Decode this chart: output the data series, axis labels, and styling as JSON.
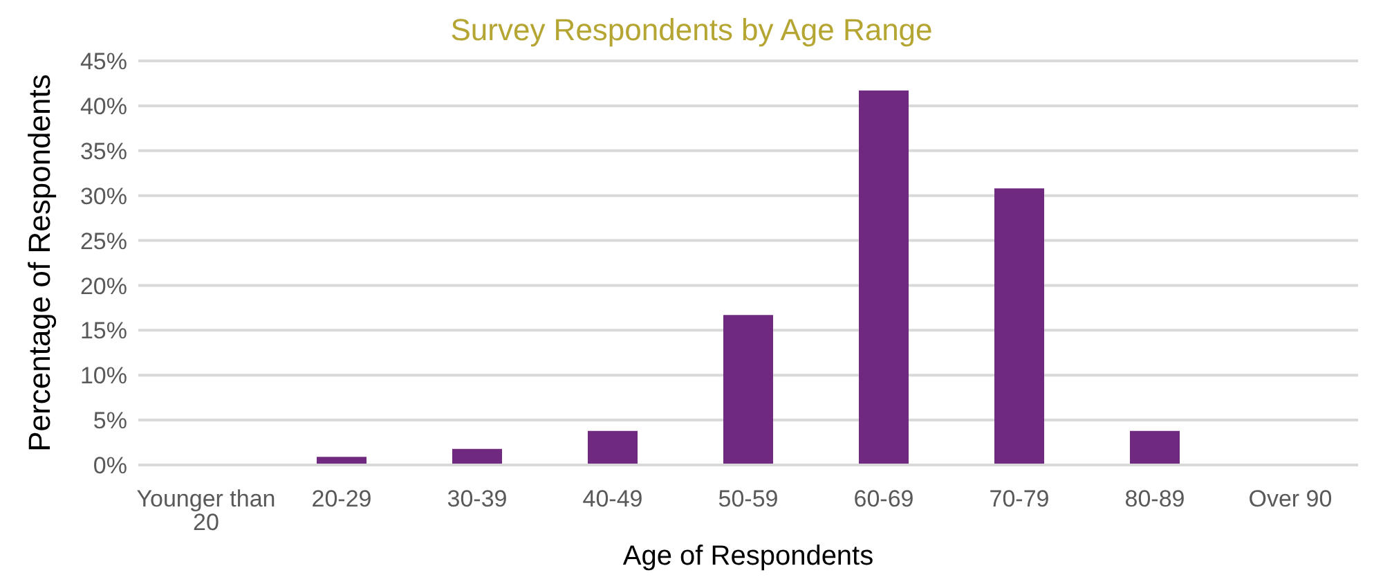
{
  "chart_data": {
    "type": "bar",
    "title": "Survey Respondents by Age Range",
    "xlabel": "Age of Respondents",
    "ylabel": "Percentage of Respondents",
    "categories": [
      "Younger than 20",
      "20-29",
      "30-39",
      "40-49",
      "50-59",
      "60-69",
      "70-79",
      "80-89",
      "Over 90"
    ],
    "values": [
      0,
      0.9,
      1.8,
      3.8,
      16.7,
      41.7,
      30.8,
      3.8,
      0
    ],
    "color": "#6f2a7f",
    "ylim": [
      0,
      45
    ],
    "yticks": [
      {
        "value": 0,
        "label": "0%"
      },
      {
        "value": 5,
        "label": "5%"
      },
      {
        "value": 10,
        "label": "10%"
      },
      {
        "value": 15,
        "label": "15%"
      },
      {
        "value": 20,
        "label": "20%"
      },
      {
        "value": 25,
        "label": "25%"
      },
      {
        "value": 30,
        "label": "30%"
      },
      {
        "value": 35,
        "label": "35%"
      },
      {
        "value": 40,
        "label": "40%"
      },
      {
        "value": 45,
        "label": "45%"
      }
    ],
    "grid": "y"
  }
}
